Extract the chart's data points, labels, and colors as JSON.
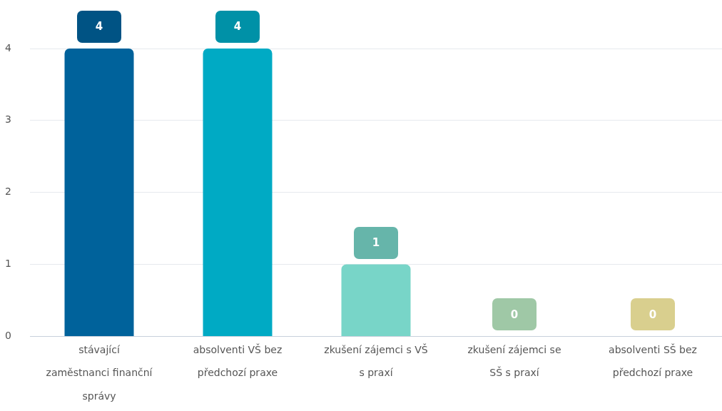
{
  "chart_data": {
    "type": "bar",
    "categories": [
      "stávající zaměstnanci finanční správy",
      "absolventi VŠ bez předchozí praxe",
      "zkušení zájemci s VŠ s praxí",
      "zkušení zájemci se SŠ s praxí",
      "absolventi SŠ bez předchozí praxe"
    ],
    "values": [
      4,
      4,
      1,
      0,
      0
    ],
    "colors": [
      "#00629b",
      "#00aac4",
      "#78d5c8",
      "#bbebc3",
      "#fff3a7"
    ],
    "ylim": [
      0,
      4
    ],
    "yticks": [
      0,
      1,
      2,
      3,
      4
    ],
    "grid": "y",
    "data_labels": true
  }
}
